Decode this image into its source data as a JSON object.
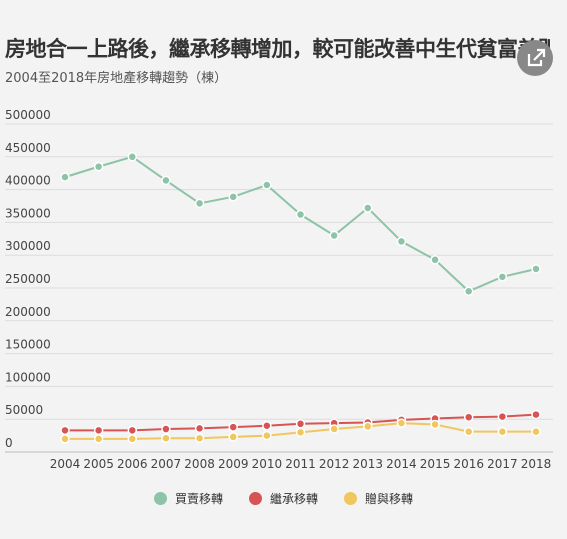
{
  "header": {
    "title": "房地合一上路後，繼承移轉增加，較可能改善中生代貧富差距",
    "subtitle": "2004至2018年房地產移轉趨勢（棟）"
  },
  "icons": {
    "share": "share-icon"
  },
  "chart_data": {
    "type": "line",
    "categories": [
      "2004",
      "2005",
      "2006",
      "2007",
      "2008",
      "2009",
      "2010",
      "2011",
      "2012",
      "2013",
      "2014",
      "2015",
      "2016",
      "2017",
      "2018"
    ],
    "ylim": [
      0,
      500000
    ],
    "y_ticks": [
      "0",
      "50000",
      "100000",
      "150000",
      "200000",
      "250000",
      "300000",
      "350000",
      "400000",
      "450000",
      "500000"
    ],
    "grid": true,
    "legend_position": "bottom",
    "series": [
      {
        "name": "買賣移轉",
        "color": "#8dc3a7",
        "values": [
          419000,
          435000,
          450000,
          414000,
          379000,
          389000,
          407000,
          362000,
          330000,
          372000,
          321000,
          293000,
          245000,
          267000,
          279000
        ]
      },
      {
        "name": "繼承移轉",
        "color": "#d65454",
        "values": [
          33000,
          33000,
          33000,
          35000,
          36000,
          38000,
          40000,
          43000,
          44000,
          45000,
          49000,
          51000,
          53000,
          54000,
          57000
        ]
      },
      {
        "name": "贈與移轉",
        "color": "#f0c75e",
        "values": [
          20000,
          20000,
          20000,
          21000,
          21000,
          23000,
          25000,
          30000,
          35000,
          39000,
          44000,
          42000,
          31000,
          31000,
          31000
        ]
      }
    ]
  }
}
